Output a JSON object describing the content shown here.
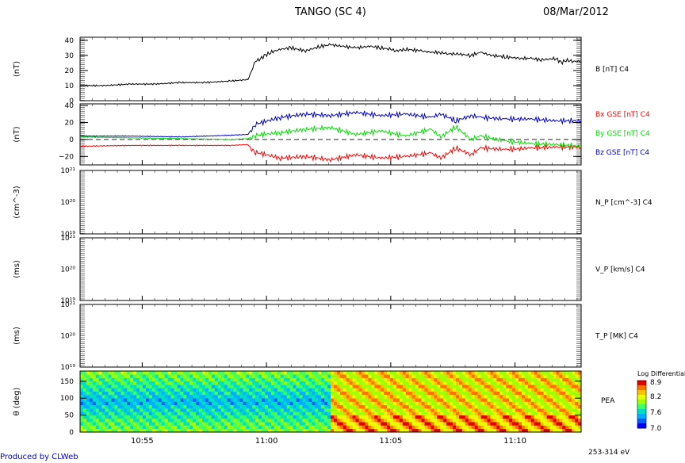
{
  "header": {
    "title": "TANGO (SC 4)",
    "date": "08/Mar/2012"
  },
  "footer": {
    "produced_by": "Produced by CLWeb"
  },
  "chart_data": [
    {
      "type": "line",
      "id": "panel-b",
      "ylabel": "(nT)",
      "ylim": [
        0,
        42
      ],
      "yticks": [
        0,
        10,
        20,
        30,
        40
      ],
      "ytick_labels": [
        "0",
        "10",
        "20",
        "30",
        "40"
      ],
      "series": [
        {
          "name": "B [nT] C4",
          "color": "#000000",
          "x": [
            0,
            5,
            10,
            15,
            20,
            25,
            30,
            33.5,
            34,
            35,
            36,
            37,
            38,
            40,
            42,
            45,
            48,
            50,
            55,
            58,
            60,
            62,
            63,
            65,
            68,
            70,
            72,
            73,
            75,
            78,
            80,
            82,
            85,
            88,
            90,
            92,
            95,
            96,
            97,
            98,
            100
          ],
          "y": [
            10,
            10,
            11,
            11,
            12,
            12,
            13,
            14,
            18,
            26,
            28,
            30,
            32,
            34,
            35,
            33,
            36,
            37,
            35,
            36,
            35,
            34,
            33,
            34,
            33,
            32,
            32,
            31,
            31,
            30,
            32,
            30,
            29,
            28,
            28,
            27,
            28,
            25,
            27,
            26,
            26
          ]
        }
      ]
    },
    {
      "type": "line",
      "id": "panel-bgse",
      "ylabel": "(nT)",
      "ylim": [
        -30,
        42
      ],
      "yticks": [
        -20,
        0,
        20,
        40
      ],
      "ytick_labels": [
        "−20",
        "0",
        "20",
        "40"
      ],
      "dashed_zero": true,
      "series": [
        {
          "name": "Bx GSE [nT] C4",
          "color": "#ff0000",
          "x": [
            0,
            10,
            20,
            30,
            33.5,
            34,
            35,
            40,
            45,
            50,
            55,
            60,
            65,
            70,
            72,
            75,
            78,
            80,
            85,
            90,
            95,
            100
          ],
          "y": [
            -8,
            -7,
            -7,
            -7,
            -6,
            -10,
            -15,
            -22,
            -20,
            -24,
            -18,
            -22,
            -20,
            -16,
            -22,
            -10,
            -18,
            -10,
            -12,
            -10,
            -9,
            -9
          ]
        },
        {
          "name": "By GSE [nT] C4",
          "color": "#00dd00",
          "x": [
            0,
            10,
            20,
            30,
            33.5,
            34,
            35,
            40,
            45,
            50,
            55,
            60,
            65,
            70,
            72,
            75,
            78,
            80,
            85,
            90,
            95,
            100
          ],
          "y": [
            3,
            2,
            1,
            0,
            1,
            2,
            5,
            8,
            12,
            14,
            6,
            10,
            4,
            12,
            3,
            15,
            0,
            4,
            -2,
            -5,
            -6,
            -8
          ]
        },
        {
          "name": "Bz GSE [nT] C4",
          "color": "#0000cc",
          "x": [
            0,
            10,
            20,
            30,
            33.5,
            34,
            35,
            40,
            45,
            50,
            55,
            60,
            65,
            70,
            72,
            75,
            78,
            80,
            85,
            90,
            95,
            100
          ],
          "y": [
            4,
            4,
            3,
            5,
            6,
            10,
            18,
            26,
            30,
            28,
            32,
            28,
            30,
            26,
            30,
            22,
            28,
            26,
            24,
            24,
            22,
            22
          ]
        }
      ]
    },
    {
      "type": "line",
      "id": "panel-np",
      "ylabel": "(cm^-3)",
      "y_log": true,
      "ylim": [
        1e+19,
        1e+21
      ],
      "ytick_labels": [
        "10²¹",
        "10²⁰",
        "10¹⁹"
      ],
      "series": [
        {
          "name": "N_P [cm^-3] C4",
          "color": "#000000"
        }
      ]
    },
    {
      "type": "line",
      "id": "panel-vp",
      "ylabel": "(ms)",
      "y_log": true,
      "ylim": [
        1e+19,
        1e+21
      ],
      "ytick_labels": [
        "10²¹",
        "10²⁰",
        "10¹⁹"
      ],
      "series": [
        {
          "name": "V_P [km/s] C4",
          "color": "#000000"
        }
      ]
    },
    {
      "type": "line",
      "id": "panel-tp",
      "ylabel": "(ms)",
      "y_log": true,
      "ylim": [
        1e+19,
        1e+21
      ],
      "ytick_labels": [
        "10²¹",
        "10²⁰",
        "10¹⁹"
      ],
      "series": [
        {
          "name": "T_P [MK] C4",
          "color": "#000000"
        }
      ]
    },
    {
      "type": "heatmap",
      "id": "panel-pea",
      "ylabel": "θ (deg)",
      "ylim": [
        0,
        180
      ],
      "yticks": [
        0,
        50,
        100,
        150
      ],
      "ytick_labels": [
        "0",
        "50",
        "100",
        "150"
      ],
      "series_label": "PEA",
      "energy_label": "253-314 eV",
      "colorbar": {
        "title": "Log Differential",
        "range": [
          7.0,
          8.9
        ],
        "tick_labels": [
          "8.9",
          "8.2",
          "7.6",
          "7.0"
        ]
      }
    }
  ],
  "x_axis": {
    "range": [
      "10:52:30",
      "11:12:40"
    ],
    "tick_labels": [
      "10:55",
      "11:00",
      "11:05",
      "11:10"
    ]
  }
}
